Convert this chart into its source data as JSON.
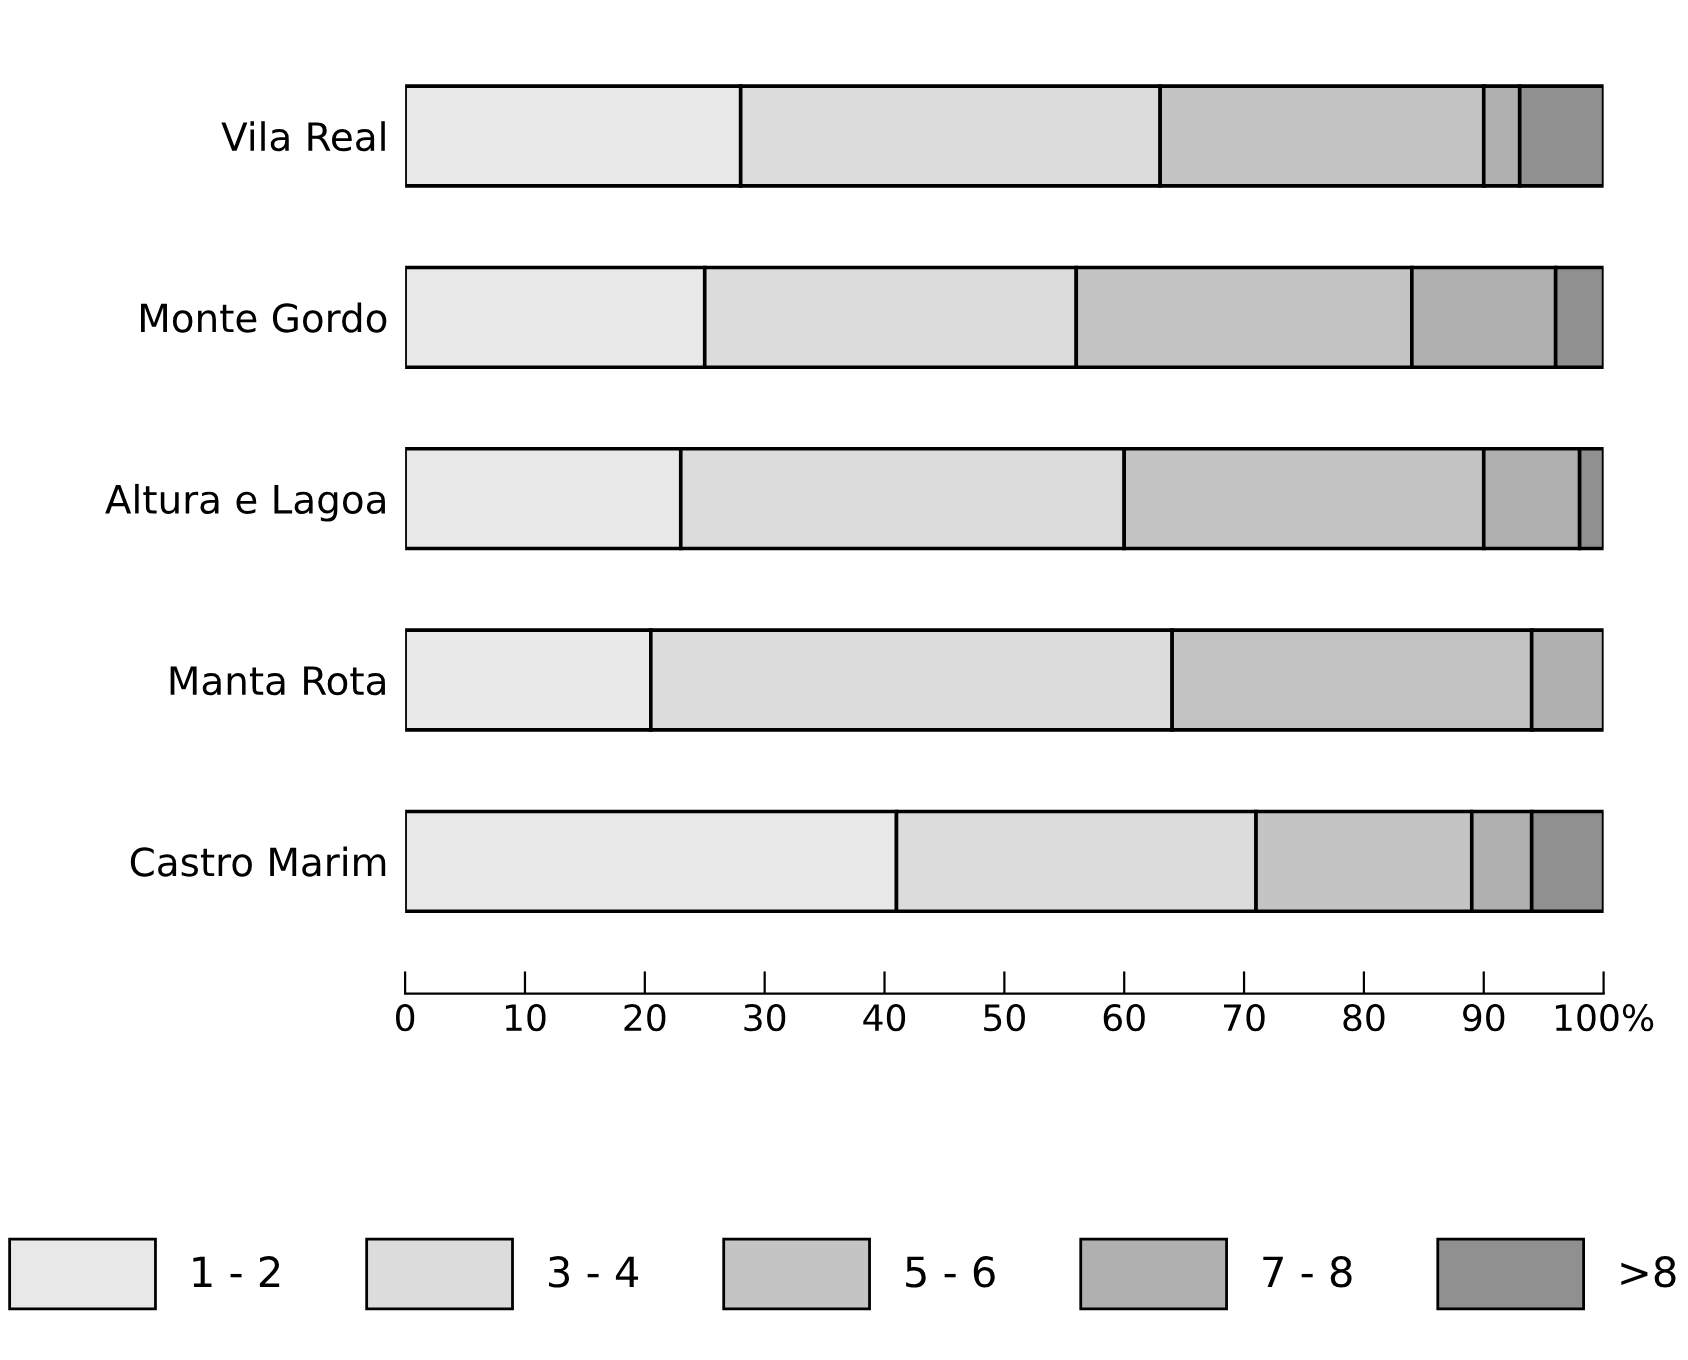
{
  "chart_data": {
    "type": "bar",
    "orientation": "horizontal",
    "stacked": true,
    "categories": [
      "Vila Real",
      "Monte Gordo",
      "Altura e Lagoa",
      "Manta Rota",
      "Castro Marim"
    ],
    "series": [
      {
        "name": "1 - 2",
        "color": "#e8e8e8",
        "values": [
          28,
          25,
          23,
          20.5,
          41
        ]
      },
      {
        "name": "3 - 4",
        "color": "#dcdcdc",
        "values": [
          35,
          31,
          37,
          43.5,
          30
        ]
      },
      {
        "name": "5 - 6",
        "color": "#c4c4c4",
        "values": [
          27,
          28,
          30,
          30,
          18
        ]
      },
      {
        "name": "7 - 8",
        "color": "#b0b0b0",
        "values": [
          3,
          12,
          8,
          6,
          5
        ]
      },
      {
        "name": ">8",
        "color": "#909090",
        "values": [
          7,
          4,
          2,
          null,
          6
        ]
      }
    ],
    "xlim": [
      0,
      100
    ],
    "xticks": [
      0,
      10,
      20,
      30,
      40,
      50,
      60,
      70,
      80,
      90,
      {
        "value": 100,
        "label": "100%"
      }
    ],
    "grid": false,
    "legend": "bottom"
  }
}
